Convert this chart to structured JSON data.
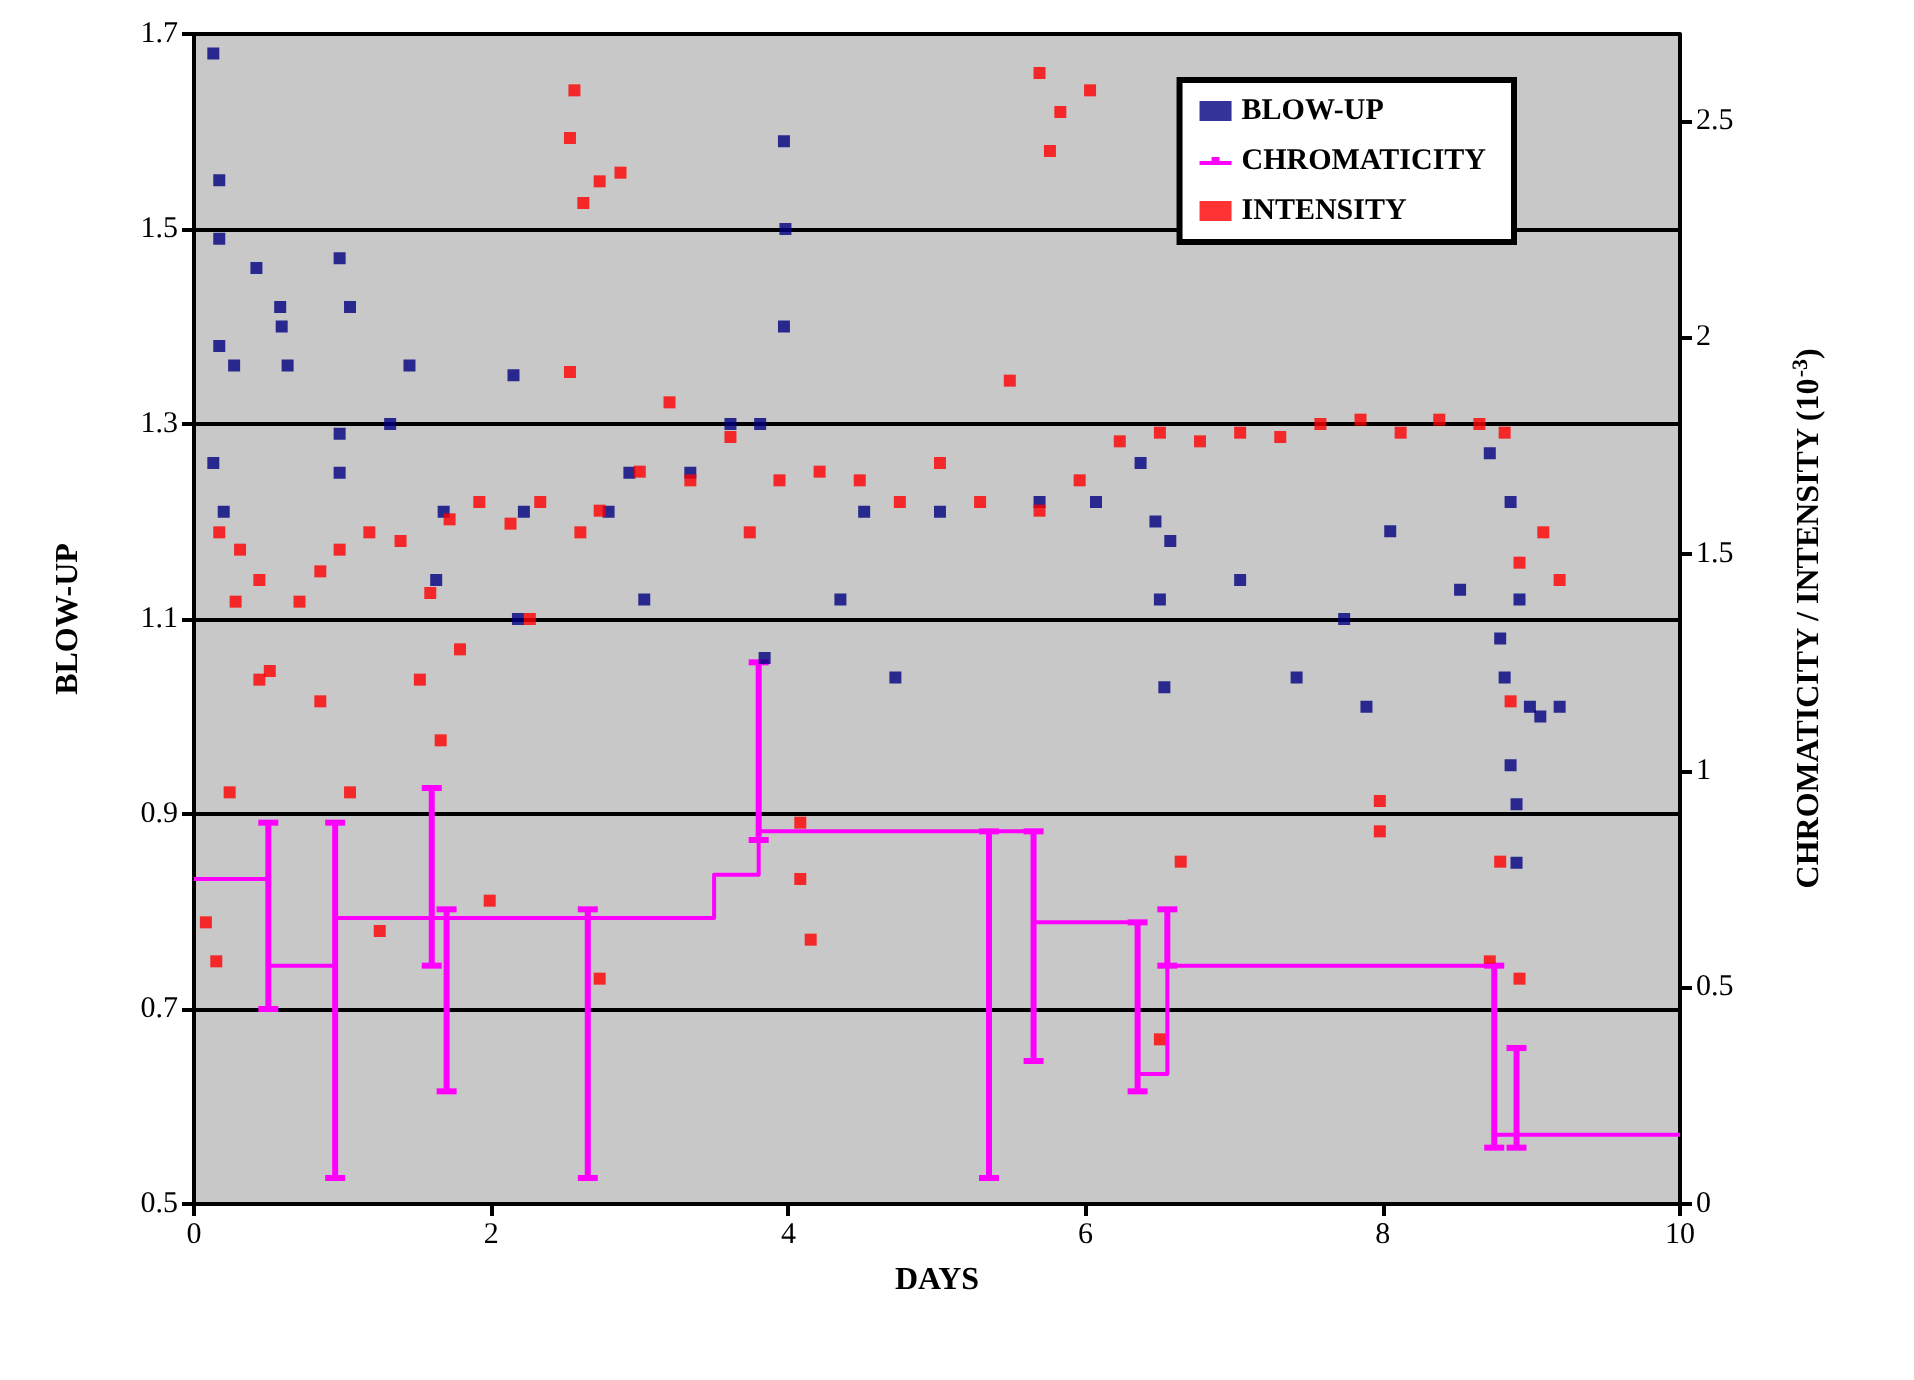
{
  "chart_data": {
    "type": "scatter",
    "xlabel": "DAYS",
    "ylabel": "BLOW-UP",
    "y2label": "CHROMATICITY / INTENSITY (10$^{-3}$)",
    "xlim": [
      0,
      10
    ],
    "xticks": [
      0,
      2,
      4,
      6,
      8,
      10
    ],
    "ylim": [
      0.5,
      1.7
    ],
    "yticks": [
      0.5,
      0.7,
      0.9,
      1.1,
      1.3,
      1.5,
      1.7
    ],
    "y2lim": [
      0,
      2.7
    ],
    "y2ticks": [
      0,
      0.5,
      1,
      1.5,
      2,
      2.5
    ],
    "grid": "y",
    "legend": "top right",
    "marker": "square",
    "series": [
      {
        "name": "BLOW-UP",
        "color": "#000080",
        "x": [
          0.13,
          0.17,
          0.17,
          0.17,
          0.13,
          0.2,
          0.27,
          0.42,
          0.58,
          0.59,
          0.63,
          0.98,
          1.05,
          0.98,
          0.98,
          1.32,
          1.45,
          1.63,
          1.68,
          2.15,
          2.22,
          2.18,
          2.79,
          2.93,
          3.03,
          3.34,
          3.61,
          3.84,
          3.97,
          3.98,
          3.97,
          3.81,
          4.35,
          4.51,
          4.72,
          5.02,
          5.69,
          6.07,
          6.37,
          6.47,
          6.57,
          6.5,
          6.53,
          7.04,
          7.42,
          7.74,
          7.89,
          8.05,
          8.52,
          8.92,
          8.72,
          8.86,
          8.79,
          8.82,
          8.99,
          9.06,
          8.86,
          8.9,
          9.19,
          8.9
        ],
        "values": [
          1.68,
          1.55,
          1.49,
          1.38,
          1.26,
          1.21,
          1.36,
          1.46,
          1.42,
          1.4,
          1.36,
          1.47,
          1.42,
          1.29,
          1.25,
          1.3,
          1.36,
          1.14,
          1.21,
          1.35,
          1.21,
          1.1,
          1.21,
          1.25,
          1.12,
          1.25,
          1.3,
          1.06,
          1.59,
          1.5,
          1.4,
          1.3,
          1.12,
          1.21,
          1.04,
          1.21,
          1.22,
          1.22,
          1.26,
          1.2,
          1.18,
          1.12,
          1.03,
          1.14,
          1.04,
          1.1,
          1.01,
          1.19,
          1.13,
          1.12,
          1.27,
          1.22,
          1.08,
          1.04,
          1.01,
          1.0,
          0.95,
          0.91,
          1.01,
          0.85
        ]
      },
      {
        "name": "CHROMATICITY",
        "color": "#ff00ff",
        "type": "step",
        "axis": "y2",
        "marker": "none",
        "x": [
          0,
          0.5,
          0.95,
          1.6,
          1.7,
          2.65,
          3.5,
          3.8,
          5.35,
          5.65,
          6.35,
          6.55,
          8.75,
          8.9,
          10
        ],
        "values": [
          0.75,
          0.55,
          0.66,
          0.66,
          0.66,
          0.66,
          0.76,
          0.86,
          0.86,
          0.65,
          0.3,
          0.55,
          0.16,
          0.16,
          0.16
        ],
        "errors": [
          null,
          [
            0.45,
            0.88
          ],
          [
            0.06,
            0.88
          ],
          [
            0.55,
            0.96
          ],
          [
            0.26,
            0.68
          ],
          [
            0.06,
            0.68
          ],
          null,
          [
            0.84,
            1.25
          ],
          [
            0.06,
            0.86
          ],
          [
            0.33,
            0.86
          ],
          [
            0.26,
            0.65
          ],
          [
            0.55,
            0.68
          ],
          [
            0.13,
            0.55
          ],
          [
            0.13,
            0.36
          ],
          null
        ]
      },
      {
        "name": "INTENSITY",
        "color": "#ff0000",
        "axis": "y2",
        "x": [
          0.17,
          0.31,
          0.44,
          0.28,
          0.44,
          0.51,
          0.24,
          0.08,
          0.15,
          2.56,
          2.53,
          2.62,
          2.73,
          2.87,
          2.53,
          0.71,
          0.85,
          0.98,
          1.18,
          1.39,
          1.59,
          1.72,
          1.92,
          2.13,
          2.33,
          2.6,
          2.73,
          3.0,
          3.34,
          3.61,
          3.74,
          3.94,
          4.21,
          4.48,
          4.75,
          5.02,
          5.29,
          5.69,
          5.96,
          6.23,
          6.5,
          6.77,
          7.04,
          7.31,
          7.58,
          7.85,
          8.12,
          8.38,
          8.65,
          8.82,
          5.49,
          5.69,
          5.83,
          6.03,
          5.76,
          1.79,
          1.52,
          1.66,
          1.99,
          2.26,
          2.73,
          3.2,
          4.08,
          4.15,
          4.08,
          6.64,
          6.5,
          7.98,
          7.98,
          8.92,
          9.08,
          9.19,
          8.79,
          8.72,
          8.92,
          8.86,
          1.25,
          0.85,
          1.05
        ],
        "values": [
          1.55,
          1.51,
          1.44,
          1.39,
          1.21,
          1.23,
          0.95,
          0.65,
          0.56,
          2.57,
          2.46,
          2.31,
          2.36,
          2.38,
          1.92,
          1.39,
          1.46,
          1.51,
          1.55,
          1.53,
          1.41,
          1.58,
          1.62,
          1.57,
          1.62,
          1.55,
          1.6,
          1.69,
          1.67,
          1.77,
          1.55,
          1.67,
          1.69,
          1.67,
          1.62,
          1.71,
          1.62,
          1.6,
          1.67,
          1.76,
          1.78,
          1.76,
          1.78,
          1.77,
          1.8,
          1.81,
          1.78,
          1.81,
          1.8,
          1.78,
          1.9,
          2.61,
          2.52,
          2.57,
          2.43,
          1.28,
          1.21,
          1.07,
          0.7,
          1.35,
          0.52,
          1.85,
          0.75,
          0.61,
          0.88,
          0.79,
          0.38,
          0.93,
          0.86,
          1.48,
          1.55,
          1.44,
          0.79,
          0.56,
          0.52,
          1.16,
          0.63,
          1.16,
          0.95
        ]
      }
    ]
  }
}
